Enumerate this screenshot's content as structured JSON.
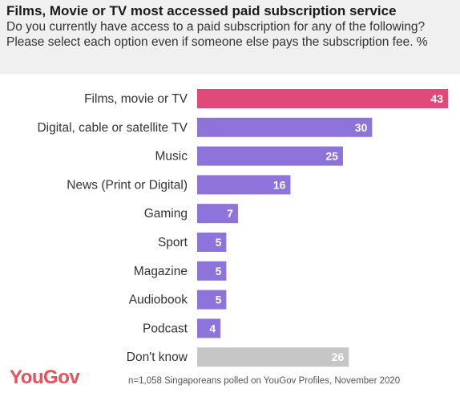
{
  "header": {
    "title": "Films, Movie or TV most accessed paid subscription service",
    "subtitle": "Do you currently have access to a paid subscription for any of the following? Please select each option even if someone else pays the subscription fee. %"
  },
  "colors": {
    "highlight": "#e0497a",
    "primary": "#8e73db",
    "neutral": "#c6c6c6",
    "label_text": "#ffffff"
  },
  "chart_data": {
    "type": "bar",
    "orientation": "horizontal",
    "categories": [
      "Films, movie or TV",
      "Digital, cable or satellite TV",
      "Music",
      "News (Print or Digital)",
      "Gaming",
      "Sport",
      "Magazine",
      "Audiobook",
      "Podcast",
      "Don't know"
    ],
    "values": [
      43,
      30,
      25,
      16,
      7,
      5,
      5,
      5,
      4,
      26
    ],
    "bar_colors": [
      "highlight",
      "primary",
      "primary",
      "primary",
      "primary",
      "primary",
      "primary",
      "primary",
      "primary",
      "neutral"
    ],
    "xlim": [
      0,
      43
    ],
    "grid": false,
    "data_labels": true
  },
  "footer": {
    "logo": "YouGov",
    "note": "n=1,058 Singaporeans polled on YouGov Profiles, November 2020"
  }
}
